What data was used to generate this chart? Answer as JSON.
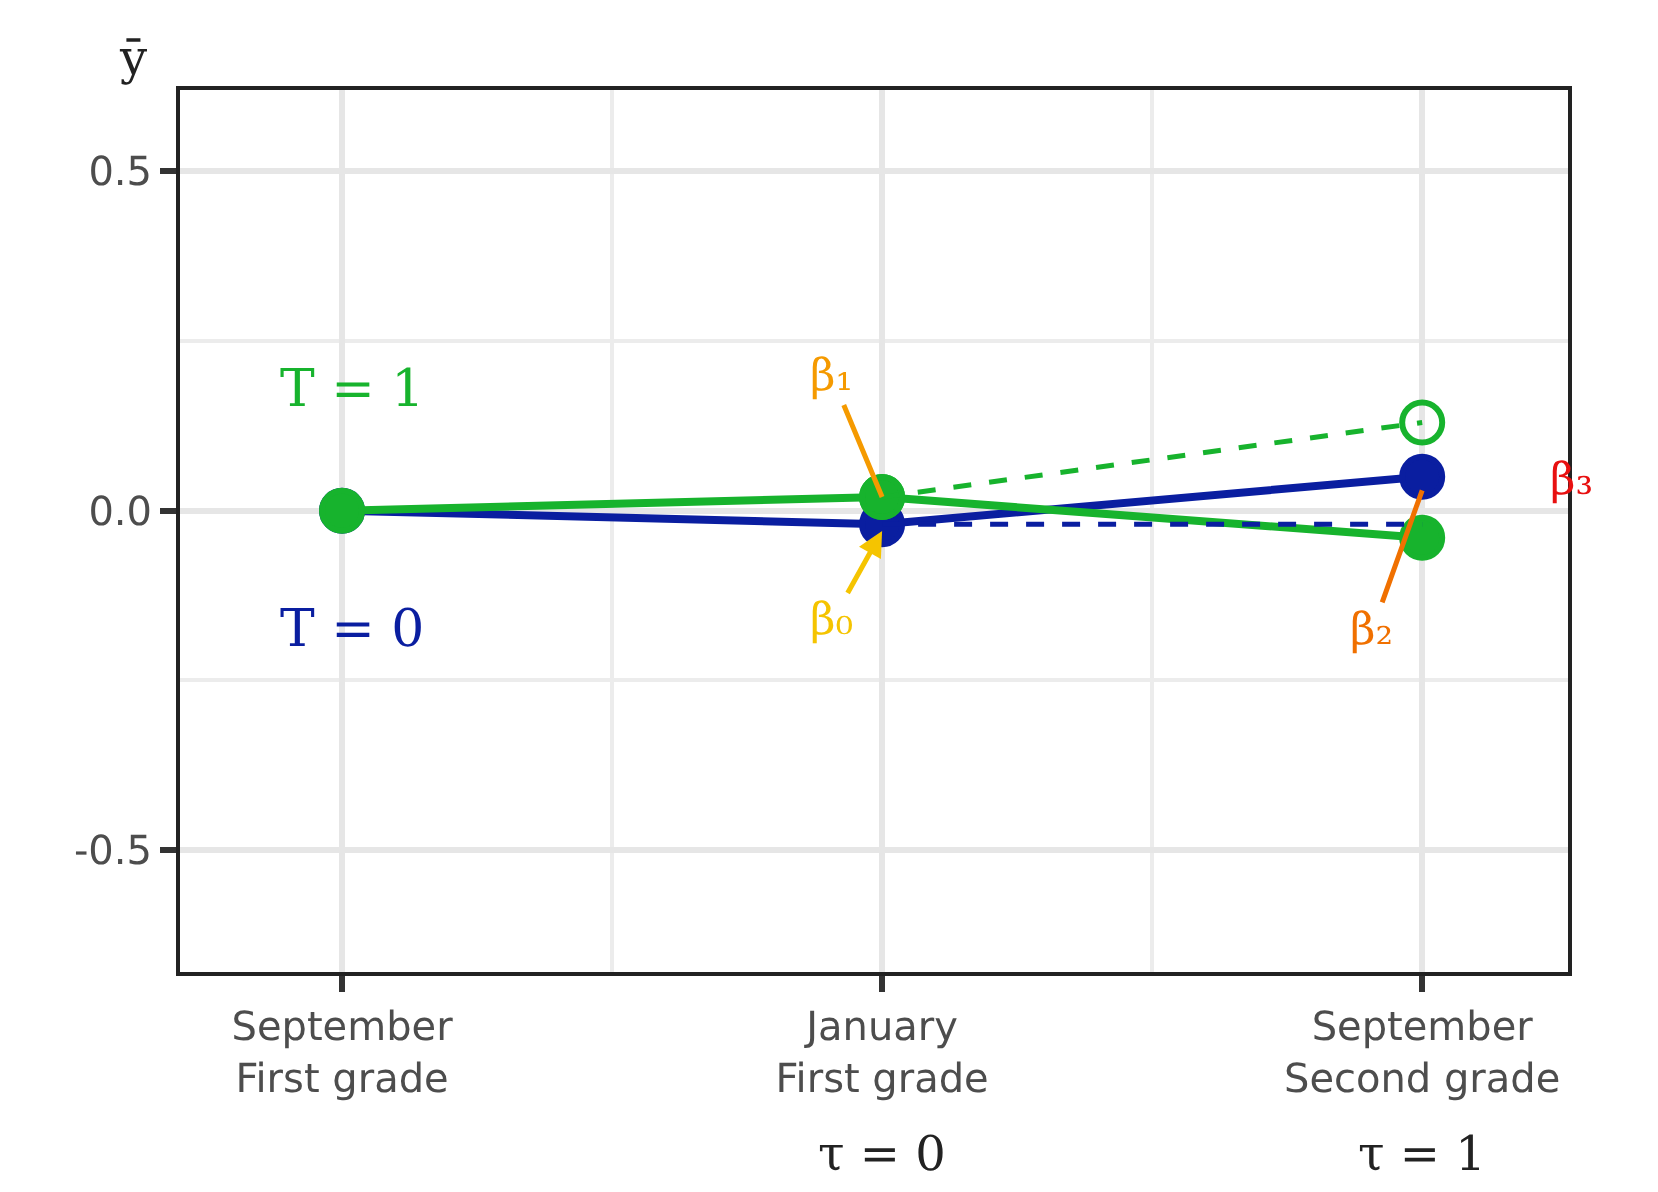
{
  "chart_data": {
    "type": "line",
    "categories": [
      "September\nFirst grade",
      "January\nFirst grade",
      "September\nSecond grade"
    ],
    "ylabel": "ȳ",
    "ylim": [
      -0.68,
      0.62
    ],
    "yticks": [
      {
        "value": -0.5,
        "label": "-0.5"
      },
      {
        "value": -0.25,
        "label": null
      },
      {
        "value": 0,
        "label": "0.0"
      },
      {
        "value": 0.25,
        "label": null
      },
      {
        "value": 0.5,
        "label": "0.5"
      }
    ],
    "grid": true,
    "legend": false,
    "marker": "circle",
    "series": [
      {
        "name": "T = 0",
        "color": "#0a1ea0",
        "values": [
          0.0,
          -0.02,
          0.05
        ]
      },
      {
        "name": "T = 1",
        "color": "#17b32d",
        "values": [
          0.0,
          0.02,
          -0.04
        ]
      },
      {
        "color": "#0a1ea0",
        "values": [
          null,
          -0.02,
          -0.02
        ],
        "line_style": "dashed",
        "marker": "none"
      },
      {
        "color": "#17b32d",
        "values": [
          null,
          0.02,
          0.13
        ],
        "line_style": "dashed",
        "marker": "circle"
      }
    ],
    "annotations": [
      {
        "text": "β₀",
        "x": "January\nFirst grade",
        "y": -0.03
      },
      {
        "text": "β₁",
        "x": "January\nFirst grade",
        "y": 0.02
      },
      {
        "text": "β₂",
        "x": "September\nSecond grade",
        "y": 0.03
      },
      {
        "text": "β₃",
        "x": "September\nSecond grade",
        "y": 0.045
      },
      "τ = 0",
      "τ = 1"
    ]
  }
}
